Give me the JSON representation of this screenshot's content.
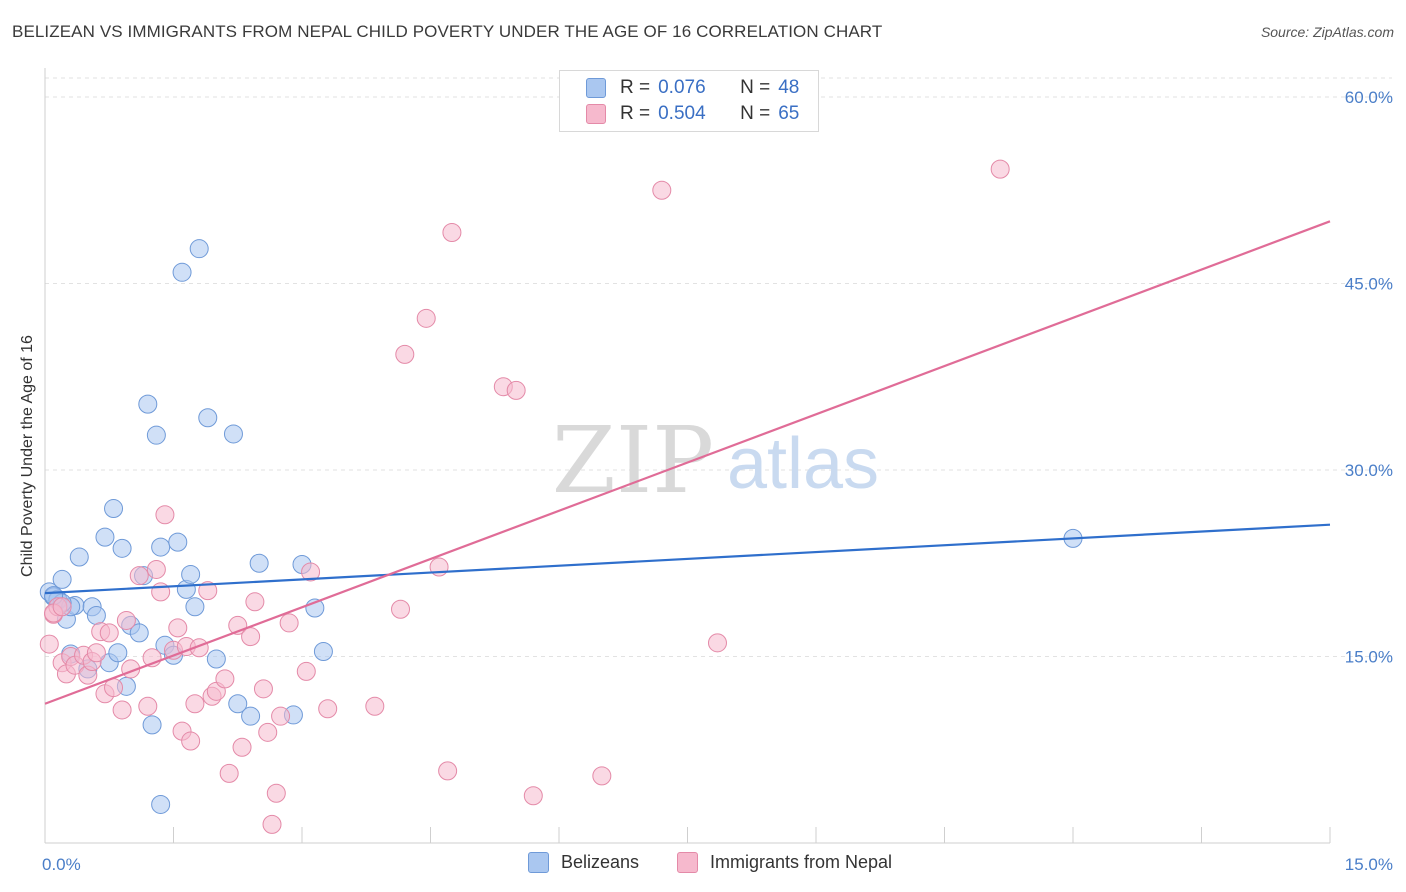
{
  "title": "BELIZEAN VS IMMIGRANTS FROM NEPAL CHILD POVERTY UNDER THE AGE OF 16 CORRELATION CHART",
  "source": "Source: ZipAtlas.com",
  "watermark": {
    "zip": "ZIP",
    "atlas": "atlas"
  },
  "legend": {
    "rows": [
      {
        "r_label": "R =",
        "r_value": "0.076",
        "n_label": "N =",
        "n_value": "48",
        "color": "#aac7f0"
      },
      {
        "r_label": "R =",
        "r_value": "0.504",
        "n_label": "N =",
        "n_value": "65",
        "color": "#f6b9cd"
      }
    ]
  },
  "chart_data": {
    "type": "scatter",
    "xlabel": "",
    "ylabel": "Child Poverty Under the Age of 16",
    "xlim": [
      0,
      15
    ],
    "ylim": [
      0,
      60
    ],
    "x_tick_labels": [
      "0.0%",
      "15.0%"
    ],
    "y_ticks": [
      15,
      30,
      45,
      60
    ],
    "y_tick_labels": [
      "15.0%",
      "30.0%",
      "45.0%",
      "60.0%"
    ],
    "grid": true,
    "legend_position": "top-center",
    "series": [
      {
        "name": "Belizeans",
        "color": "#aac7f0",
        "stroke": "#6f9ad8",
        "line_color": "#2f6fcc",
        "trend": {
          "x": [
            0,
            15
          ],
          "y": [
            20.1,
            25.6
          ]
        },
        "points": [
          [
            0.05,
            20.2
          ],
          [
            0.1,
            19.8
          ],
          [
            0.15,
            19.5
          ],
          [
            0.2,
            21.2
          ],
          [
            0.25,
            18.0
          ],
          [
            0.3,
            15.2
          ],
          [
            0.35,
            19.1
          ],
          [
            0.4,
            23.0
          ],
          [
            0.5,
            14.0
          ],
          [
            0.55,
            19.0
          ],
          [
            0.6,
            18.3
          ],
          [
            0.7,
            24.6
          ],
          [
            0.75,
            14.5
          ],
          [
            0.8,
            26.9
          ],
          [
            0.85,
            15.3
          ],
          [
            0.9,
            23.7
          ],
          [
            0.95,
            12.6
          ],
          [
            1.0,
            17.5
          ],
          [
            1.1,
            16.9
          ],
          [
            1.15,
            21.5
          ],
          [
            1.2,
            35.3
          ],
          [
            1.25,
            9.5
          ],
          [
            1.3,
            32.8
          ],
          [
            1.35,
            23.8
          ],
          [
            1.4,
            15.9
          ],
          [
            1.5,
            15.1
          ],
          [
            1.55,
            24.2
          ],
          [
            1.6,
            45.9
          ],
          [
            1.65,
            20.4
          ],
          [
            1.7,
            21.6
          ],
          [
            1.75,
            19.0
          ],
          [
            1.8,
            47.8
          ],
          [
            1.9,
            34.2
          ],
          [
            2.0,
            14.8
          ],
          [
            2.2,
            32.9
          ],
          [
            2.25,
            11.2
          ],
          [
            2.4,
            10.2
          ],
          [
            2.5,
            22.5
          ],
          [
            2.9,
            10.3
          ],
          [
            3.0,
            22.4
          ],
          [
            3.15,
            18.9
          ],
          [
            3.25,
            15.4
          ],
          [
            1.35,
            3.1
          ],
          [
            0.15,
            19.6
          ],
          [
            0.3,
            19.0
          ],
          [
            0.2,
            19.3
          ],
          [
            0.1,
            19.9
          ],
          [
            12.0,
            24.5
          ]
        ]
      },
      {
        "name": "Immigrants from Nepal",
        "color": "#f6b9cd",
        "stroke": "#e48aa8",
        "line_color": "#e06c97",
        "trend": {
          "x": [
            0,
            15
          ],
          "y": [
            11.2,
            50.0
          ]
        },
        "points": [
          [
            0.05,
            16.0
          ],
          [
            0.1,
            18.4
          ],
          [
            0.15,
            19.0
          ],
          [
            0.2,
            14.5
          ],
          [
            0.25,
            13.6
          ],
          [
            0.3,
            15.0
          ],
          [
            0.35,
            14.3
          ],
          [
            0.45,
            15.1
          ],
          [
            0.5,
            13.5
          ],
          [
            0.55,
            14.6
          ],
          [
            0.6,
            15.3
          ],
          [
            0.65,
            17.0
          ],
          [
            0.7,
            12.0
          ],
          [
            0.75,
            16.9
          ],
          [
            0.8,
            12.5
          ],
          [
            0.9,
            10.7
          ],
          [
            0.95,
            17.9
          ],
          [
            1.0,
            14.0
          ],
          [
            1.1,
            21.5
          ],
          [
            1.2,
            11.0
          ],
          [
            1.25,
            14.9
          ],
          [
            1.3,
            22.0
          ],
          [
            1.35,
            20.2
          ],
          [
            1.4,
            26.4
          ],
          [
            1.5,
            15.5
          ],
          [
            1.55,
            17.3
          ],
          [
            1.6,
            9.0
          ],
          [
            1.65,
            15.8
          ],
          [
            1.7,
            8.2
          ],
          [
            1.75,
            11.2
          ],
          [
            1.8,
            15.7
          ],
          [
            1.9,
            20.3
          ],
          [
            1.95,
            11.8
          ],
          [
            2.0,
            12.2
          ],
          [
            2.1,
            13.2
          ],
          [
            2.15,
            5.6
          ],
          [
            2.25,
            17.5
          ],
          [
            2.3,
            7.7
          ],
          [
            2.4,
            16.6
          ],
          [
            2.45,
            19.4
          ],
          [
            2.55,
            12.4
          ],
          [
            2.6,
            8.9
          ],
          [
            2.65,
            1.5
          ],
          [
            2.7,
            4.0
          ],
          [
            2.75,
            10.2
          ],
          [
            2.85,
            17.7
          ],
          [
            3.05,
            13.8
          ],
          [
            3.1,
            21.8
          ],
          [
            3.3,
            10.8
          ],
          [
            3.85,
            11.0
          ],
          [
            4.15,
            18.8
          ],
          [
            4.2,
            39.3
          ],
          [
            4.45,
            42.2
          ],
          [
            4.6,
            22.2
          ],
          [
            4.7,
            5.8
          ],
          [
            4.75,
            49.1
          ],
          [
            5.35,
            36.7
          ],
          [
            5.5,
            36.4
          ],
          [
            5.7,
            3.8
          ],
          [
            6.5,
            5.4
          ],
          [
            7.2,
            52.5
          ],
          [
            7.85,
            16.1
          ],
          [
            11.15,
            54.2
          ],
          [
            0.1,
            18.5
          ],
          [
            0.2,
            19.0
          ]
        ]
      }
    ]
  }
}
